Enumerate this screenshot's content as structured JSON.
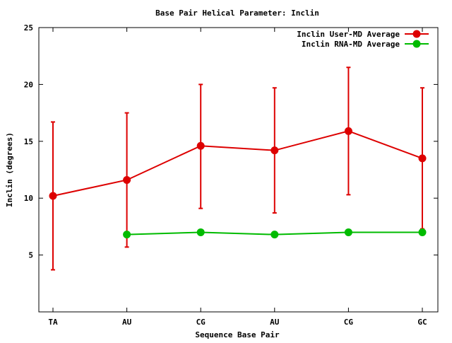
{
  "chart_data": {
    "type": "line",
    "title": "Base Pair Helical Parameter: Inclin",
    "xlabel": "Sequence Base Pair",
    "ylabel": "Inclin (degrees)",
    "categories": [
      "TA",
      "AU",
      "CG",
      "AU",
      "CG",
      "GC"
    ],
    "ylim": [
      0,
      25
    ],
    "yticks": [
      5,
      10,
      15,
      20,
      25
    ],
    "legend_position": "top-right",
    "grid": false,
    "series": [
      {
        "name": "Inclin User-MD Average",
        "color": "#dd0000",
        "values": [
          10.2,
          11.6,
          14.6,
          14.2,
          15.9,
          13.5
        ],
        "error_low": [
          3.7,
          5.7,
          9.1,
          8.7,
          10.3,
          7.3
        ],
        "error_high": [
          16.7,
          17.5,
          20.0,
          19.7,
          21.5,
          19.7
        ]
      },
      {
        "name": "Inclin RNA-MD Average",
        "color": "#00bb00",
        "values": [
          null,
          6.8,
          7.0,
          6.8,
          7.0,
          7.0
        ]
      }
    ]
  }
}
